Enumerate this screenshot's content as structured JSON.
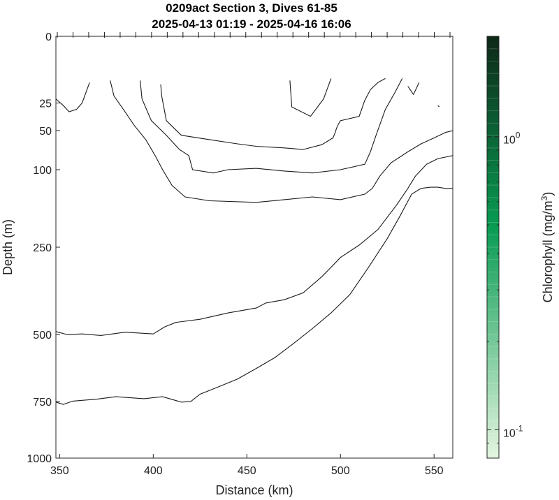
{
  "chart_data": {
    "type": "contour",
    "title": "0209act Section 3, Dives 61-85",
    "subtitle": "2025-04-13 01:19 - 2025-04-16 16:06",
    "xlabel": "Distance (km)",
    "ylabel": "Depth (m)",
    "xlim": [
      348,
      560
    ],
    "ylim": [
      0,
      1000
    ],
    "y_scale": "square-root",
    "x_ticks": [
      "350",
      "400",
      "450",
      "500",
      "550"
    ],
    "y_ticks": [
      "0",
      "25",
      "50",
      "100",
      "250",
      "500",
      "750",
      "1000"
    ],
    "grid": false,
    "dive_markers_at_top": true,
    "colorbar": {
      "label": "Chlorophyll (mg/m",
      "label_sup": "3",
      "label_close": ")",
      "scale": "log",
      "range": [
        0.08,
        2.2
      ],
      "tick_base": "10",
      "ticks": [
        {
          "value": 1,
          "exponent": "0"
        },
        {
          "value": 0.1,
          "exponent": "-1"
        }
      ],
      "color_low": "#e4f5e0",
      "color_mid": "#089b52",
      "color_high": "#0e2818"
    },
    "contours": [
      {
        "x": [
          348,
          352,
          355,
          359,
          362,
          366
        ],
        "y": [
          22,
          27,
          32,
          30,
          25,
          12
        ]
      },
      {
        "x": [
          404,
          404.5,
          407,
          415,
          430,
          445,
          455,
          470,
          480,
          490,
          496,
          497,
          498,
          499,
          500,
          510,
          513,
          516,
          520,
          524
        ],
        "y": [
          13,
          20,
          40,
          55,
          60,
          65,
          68,
          70,
          72,
          66,
          58,
          53,
          47,
          43,
          40,
          36,
          23,
          16,
          12,
          10
        ]
      },
      {
        "x": [
          393,
          394,
          399,
          407,
          414,
          419,
          421,
          432,
          440,
          455,
          470,
          485,
          500,
          513,
          516,
          519,
          524,
          529,
          533
        ],
        "y": [
          11,
          22,
          40,
          55,
          72,
          80,
          100,
          105,
          100,
          98,
          102,
          105,
          100,
          92,
          75,
          55,
          30,
          18,
          10
        ]
      },
      {
        "x": [
          377,
          379,
          384,
          390,
          396,
          401,
          405,
          410,
          417,
          430,
          455,
          470,
          485,
          500,
          513,
          517,
          521,
          527,
          536,
          543,
          550,
          556,
          560
        ],
        "y": [
          11,
          20,
          30,
          45,
          60,
          80,
          100,
          125,
          145,
          152,
          155,
          150,
          145,
          150,
          140,
          130,
          110,
          90,
          75,
          65,
          58,
          52,
          50
        ]
      },
      {
        "x": [
          473,
          474,
          484,
          491,
          495
        ],
        "y": [
          11,
          28,
          36,
          22,
          10
        ]
      },
      {
        "x": [
          536,
          539,
          542
        ],
        "y": [
          14,
          19,
          12
        ]
      },
      {
        "x": [
          552,
          552.8
        ],
        "y": [
          27,
          28
        ]
      },
      {
        "x": [
          348,
          354,
          362,
          372,
          385,
          400,
          406,
          412,
          425,
          440,
          455,
          460,
          470,
          480,
          490,
          495,
          500,
          510,
          520,
          530,
          536,
          540,
          546,
          552,
          556,
          560
        ],
        "y": [
          490,
          500,
          498,
          503,
          492,
          498,
          475,
          460,
          450,
          430,
          415,
          400,
          390,
          370,
          325,
          300,
          275,
          245,
          210,
          160,
          130,
          110,
          92,
          84,
          82,
          80
        ]
      },
      {
        "x": [
          348,
          352,
          357,
          370,
          380,
          395,
          405,
          415,
          420,
          425,
          435,
          445,
          455,
          465,
          475,
          485,
          495,
          505,
          515,
          525,
          532,
          538,
          543,
          548,
          552,
          556,
          560
        ],
        "y": [
          752,
          762,
          748,
          740,
          730,
          738,
          730,
          752,
          750,
          720,
          690,
          660,
          620,
          580,
          530,
          480,
          430,
          375,
          300,
          230,
          180,
          140,
          130,
          128,
          128,
          130,
          130
        ]
      }
    ]
  }
}
